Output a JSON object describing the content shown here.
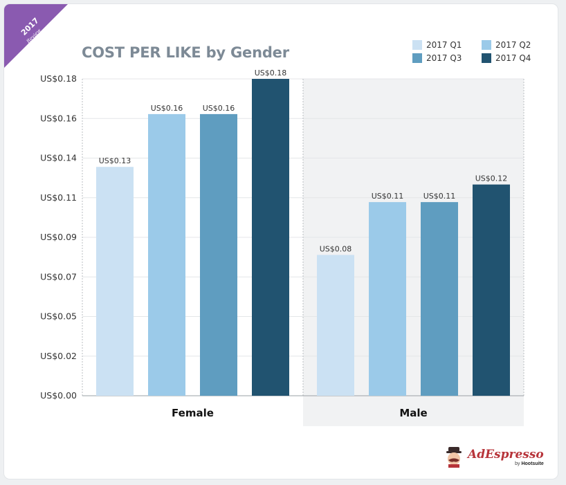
{
  "badge": {
    "year": "2017",
    "sub": "Review"
  },
  "legend": [
    {
      "label": "2017 Q1",
      "color": "#cbe1f3"
    },
    {
      "label": "2017 Q2",
      "color": "#9bcae9"
    },
    {
      "label": "2017 Q3",
      "color": "#5f9dc0"
    },
    {
      "label": "2017 Q4",
      "color": "#215370"
    }
  ],
  "brand": {
    "name": "AdEspresso",
    "by": "by",
    "parent": "Hootsuite"
  },
  "chart_data": {
    "type": "bar",
    "title": "COST PER LIKE by Gender",
    "categories": [
      "Female",
      "Male"
    ],
    "series": [
      {
        "name": "2017 Q1",
        "color": "#cbe1f3",
        "values": [
          0.13,
          0.08
        ],
        "labels": [
          "US$0.13",
          "US$0.08"
        ]
      },
      {
        "name": "2017 Q2",
        "color": "#9bcae9",
        "values": [
          0.16,
          0.11
        ],
        "labels": [
          "US$0.16",
          "US$0.11"
        ]
      },
      {
        "name": "2017 Q3",
        "color": "#5f9dc0",
        "values": [
          0.16,
          0.11
        ],
        "labels": [
          "US$0.16",
          "US$0.11"
        ]
      },
      {
        "name": "2017 Q4",
        "color": "#215370",
        "values": [
          0.18,
          0.12
        ],
        "labels": [
          "US$0.18",
          "US$0.12"
        ]
      }
    ],
    "yticks": [
      "US$0.00",
      "US$0.02",
      "US$0.05",
      "US$0.07",
      "US$0.09",
      "US$0.11",
      "US$0.14",
      "US$0.16",
      "US$0.18"
    ],
    "ylim": [
      0,
      0.18
    ],
    "xlabel": "",
    "ylabel": "",
    "grid": true,
    "legend_position": "top-right"
  }
}
